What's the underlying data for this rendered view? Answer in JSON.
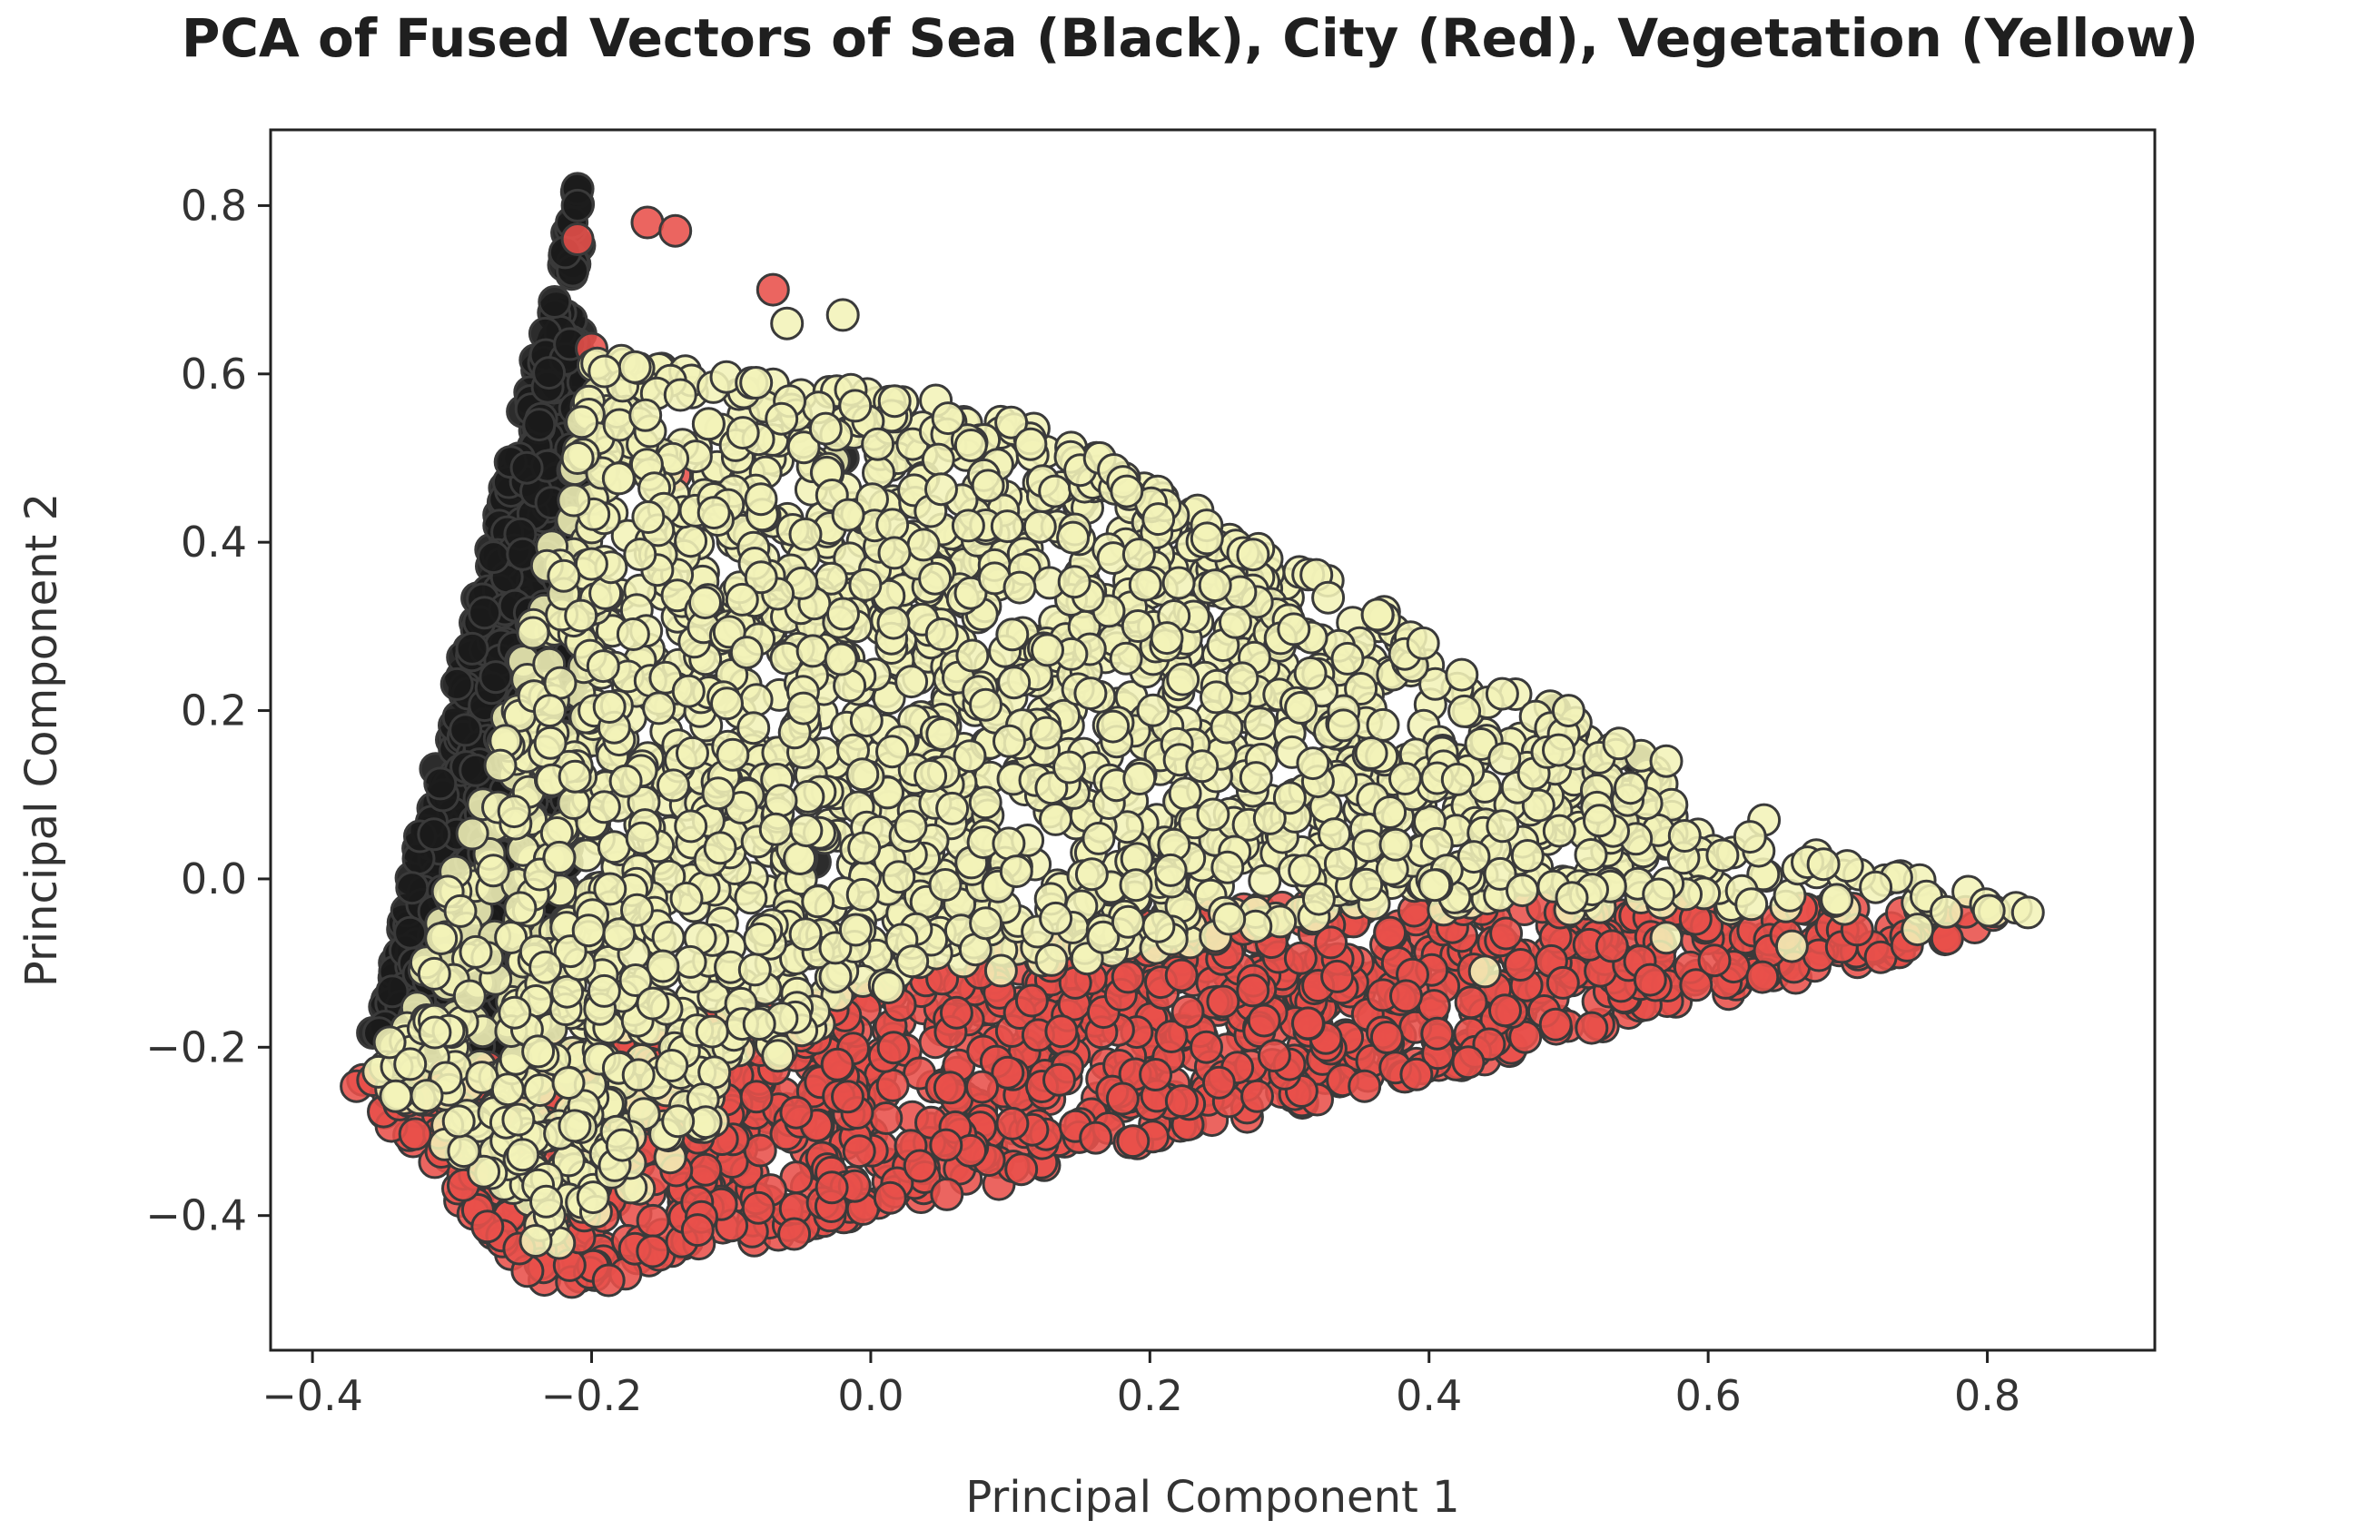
{
  "chart_data": {
    "type": "scatter",
    "title": "PCA of Fused Vectors of Sea (Black), City (Red), Vegetation (Yellow)",
    "xlabel": "Principal Component 1",
    "ylabel": "Principal Component 2",
    "xlim": [
      -0.43,
      0.92
    ],
    "ylim": [
      -0.56,
      0.89
    ],
    "xticks": [
      -0.4,
      -0.2,
      0.0,
      0.2,
      0.4,
      0.6,
      0.8
    ],
    "xtick_labels": [
      "−0.4",
      "−0.2",
      "0.0",
      "0.2",
      "0.4",
      "0.6",
      "0.8"
    ],
    "yticks": [
      -0.4,
      -0.2,
      0.0,
      0.2,
      0.4,
      0.6,
      0.8
    ],
    "ytick_labels": [
      "−0.4",
      "−0.2",
      "0.0",
      "0.2",
      "0.4",
      "0.6",
      "0.8"
    ],
    "grid": false,
    "legend": "none",
    "series": [
      {
        "name": "Sea",
        "color": "#1a1a1a",
        "region": [
          [
            -0.21,
            0.83
          ],
          [
            -0.2,
            0.3
          ],
          [
            -0.23,
            -0.2
          ],
          [
            -0.36,
            -0.2
          ]
        ],
        "count": 800,
        "extra_points": [
          [
            -0.21,
            0.82
          ],
          [
            -0.21,
            0.8
          ],
          [
            0.49,
            0.2
          ],
          [
            0.52,
            0.13
          ],
          [
            0.55,
            0.14
          ],
          [
            -0.04,
            0.02
          ],
          [
            -0.02,
            0.5
          ]
        ]
      },
      {
        "name": "City",
        "color": "#e8504a",
        "region": [
          [
            -0.38,
            -0.23
          ],
          [
            -0.23,
            -0.5
          ],
          [
            0.85,
            -0.04
          ],
          [
            0.6,
            -0.03
          ],
          [
            0.2,
            -0.03
          ],
          [
            -0.02,
            -0.14
          ],
          [
            -0.2,
            -0.2
          ]
        ],
        "count": 1300,
        "extra_points": [
          [
            -0.16,
            0.78
          ],
          [
            -0.14,
            0.77
          ],
          [
            -0.07,
            0.7
          ],
          [
            -0.21,
            0.76
          ],
          [
            -0.2,
            0.63
          ],
          [
            -0.14,
            0.48
          ],
          [
            0.06,
            0.52
          ]
        ]
      },
      {
        "name": "Vegetation",
        "color": "#f3f3b8",
        "region": [
          [
            -0.2,
            0.62
          ],
          [
            0.1,
            0.56
          ],
          [
            0.3,
            0.38
          ],
          [
            0.55,
            0.15
          ],
          [
            0.6,
            0.06
          ],
          [
            0.85,
            -0.04
          ],
          [
            0.35,
            -0.04
          ],
          [
            -0.02,
            -0.15
          ],
          [
            -0.22,
            -0.45
          ],
          [
            -0.36,
            -0.23
          ],
          [
            -0.28,
            0.08
          ]
        ],
        "count": 2300,
        "extra_points": [
          [
            -0.06,
            0.66
          ],
          [
            -0.02,
            0.67
          ],
          [
            -0.21,
            0.5
          ],
          [
            -0.22,
            0.36
          ],
          [
            -0.23,
            0.2
          ],
          [
            0.5,
            0.2
          ],
          [
            0.57,
            0.14
          ],
          [
            0.64,
            0.07
          ],
          [
            0.63,
            0.05
          ],
          [
            0.72,
            -0.01
          ],
          [
            0.44,
            -0.11
          ],
          [
            0.57,
            -0.07
          ],
          [
            0.66,
            -0.08
          ],
          [
            0.75,
            -0.06
          ],
          [
            -0.24,
            -0.43
          ],
          [
            -0.26,
            -0.25
          ],
          [
            -0.33,
            -0.22
          ]
        ]
      }
    ]
  }
}
